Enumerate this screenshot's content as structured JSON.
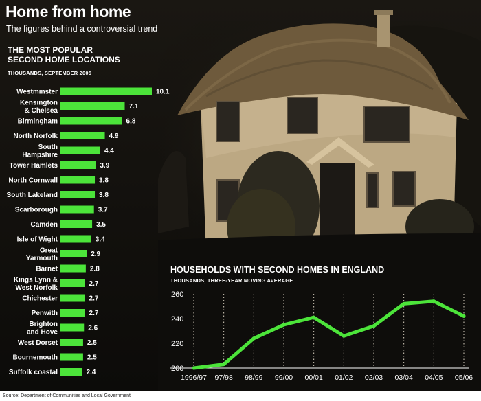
{
  "header": {
    "title": "Home from home",
    "subtitle": "The figures behind a controversial trend"
  },
  "bar_panel": {
    "title_line1": "THE MOST  POPULAR",
    "title_line2": "SECOND HOME LOCATIONS",
    "unit": "THOUSANDS, SEPTEMBER 2005"
  },
  "line_panel": {
    "title": "HOUSEHOLDS WITH SECOND HOMES IN ENGLAND",
    "unit": "THOUSANDS, THREE-YEAR MOVING AVERAGE"
  },
  "source": "Source: Department of Communities and Local Government",
  "colors": {
    "background": "#0e0d0b",
    "accent": "#4ce43a",
    "text": "#ffffff"
  },
  "chart_data": [
    {
      "type": "bar",
      "orientation": "horizontal",
      "title": "THE MOST  POPULAR SECOND HOME LOCATIONS",
      "unit": "THOUSANDS, SEPTEMBER 2005",
      "categories": [
        [
          "Westminster"
        ],
        [
          "Kensington",
          "& Chelsea"
        ],
        [
          "Birmingham"
        ],
        [
          "North Norfolk"
        ],
        [
          "South",
          "Hampshire"
        ],
        [
          "Tower Hamlets"
        ],
        [
          "North Cornwall"
        ],
        [
          "South Lakeland"
        ],
        [
          "Scarborough"
        ],
        [
          "Camden"
        ],
        [
          "Isle of Wight"
        ],
        [
          "Great",
          "Yarmouth"
        ],
        [
          "Barnet"
        ],
        [
          "Kings Lynn &",
          "West Norfolk"
        ],
        [
          "Chichester"
        ],
        [
          "Penwith"
        ],
        [
          "Brighton",
          "and Hove"
        ],
        [
          "West Dorset"
        ],
        [
          "Bournemouth"
        ],
        [
          "Suffolk coastal"
        ]
      ],
      "values": [
        10.1,
        7.1,
        6.8,
        4.9,
        4.4,
        3.9,
        3.8,
        3.8,
        3.7,
        3.5,
        3.4,
        2.9,
        2.8,
        2.7,
        2.7,
        2.7,
        2.6,
        2.5,
        2.5,
        2.4
      ],
      "value_labels": [
        "10.1",
        "7.1",
        "6.8",
        "4.9",
        "4.4",
        "3.9",
        "3.8",
        "3.8",
        "3.7",
        "3.5",
        "3.4",
        "2.9",
        "2.8",
        "2.7",
        "2.7",
        "2.7",
        "2.6",
        "2.5",
        "2.5",
        "2.4"
      ],
      "color": "#4ce43a"
    },
    {
      "type": "line",
      "title": "HOUSEHOLDS WITH SECOND HOMES IN ENGLAND",
      "unit": "THOUSANDS, THREE-YEAR MOVING AVERAGE",
      "x": [
        "1996/97",
        "97/98",
        "98/99",
        "99/00",
        "00/01",
        "01/02",
        "02/03",
        "03/04",
        "04/05",
        "05/06"
      ],
      "y": [
        200,
        203,
        224,
        235,
        241,
        226,
        234,
        252,
        254,
        242
      ],
      "ylim": [
        200,
        260
      ],
      "yticks": [
        200,
        220,
        240,
        260
      ],
      "grid": "vertical dotted",
      "color": "#4ce43a"
    }
  ]
}
